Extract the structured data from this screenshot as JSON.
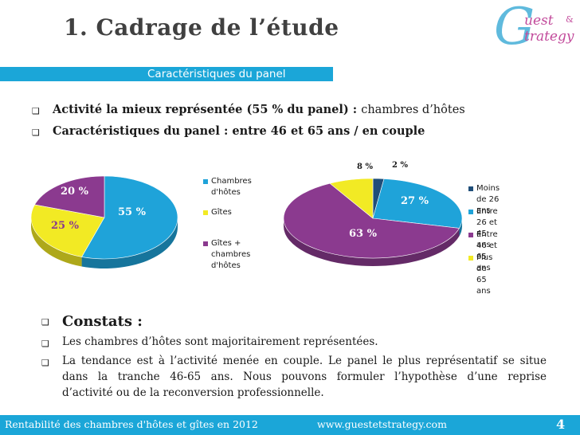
{
  "slide": {
    "title": "1. Cadrage de l’étude",
    "subtitle": "Caractéristiques du panel"
  },
  "logo": {
    "mark": "G",
    "word1": "uest",
    "amp": "&",
    "word2": "trategy"
  },
  "bullets": [
    {
      "bold": "Activité la mieux représentée (55 % du panel) : ",
      "rest": "chambres d’hôtes"
    },
    {
      "bold": "Caractéristiques du panel : entre 46 et 65 ans / en couple",
      "rest": ""
    }
  ],
  "colors": {
    "accent": "#1ba6d8",
    "blue": "#1fa3d9",
    "purple": "#8b3a8f",
    "yellow": "#f2ea24",
    "navy": "#1f4e79"
  },
  "chart_data": [
    {
      "type": "pie",
      "labels": [
        "Chambres d'hôtes",
        "Gîtes",
        "Gîtes + chambres d'hôtes"
      ],
      "values": [
        55,
        25,
        20
      ],
      "value_labels": [
        "55 %",
        "25 %",
        "20 %"
      ],
      "legend": "right",
      "legend_lines": [
        [
          "Chambres",
          "d'hôtes"
        ],
        [
          "Gîtes"
        ],
        [
          "Gîtes +",
          "chambres",
          "d'hôtes"
        ]
      ]
    },
    {
      "type": "pie",
      "labels": [
        "Moins de 26 ans",
        "Entre 26 et 45 ans",
        "Entre 46 et 65 ans",
        "Plus de 65 ans"
      ],
      "values": [
        2,
        27,
        63,
        8
      ],
      "value_labels": [
        "2 %",
        "27 %",
        "63 %",
        "8 %"
      ],
      "legend": "right"
    }
  ],
  "constats": {
    "title": "Constats :",
    "lines": [
      "Les chambres d’hôtes sont majoritairement représentées.",
      "La tendance est à l’activité menée en couple. Le panel le plus représentatif se situe",
      "dans la tranche 46-65 ans. Nous pouvons formuler l’hypothèse d’une reprise",
      "d’activité ou de la reconversion professionnelle."
    ]
  },
  "footer": {
    "left": "Rentabilité des chambres d'hôtes et gîtes en 2012",
    "url": "www.guestetstrategy.com",
    "page": "4"
  }
}
